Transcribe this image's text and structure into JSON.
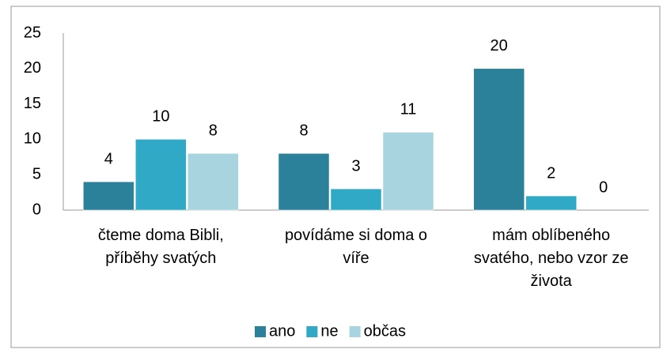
{
  "chart_data": {
    "type": "bar",
    "categories": [
      "čteme doma Bibli, příběhy svatých",
      "povídáme si doma o víře",
      "mám oblíbeného svatého, nebo vzor ze života"
    ],
    "series": [
      {
        "name": "ano",
        "color": "#2b8199",
        "values": [
          4,
          8,
          20
        ]
      },
      {
        "name": "ne",
        "color": "#2fa9c6",
        "values": [
          10,
          3,
          2
        ]
      },
      {
        "name": "občas",
        "color": "#a8d4df",
        "values": [
          8,
          11,
          0
        ]
      }
    ],
    "ylim": [
      0,
      25
    ],
    "yticks": [
      0,
      5,
      10,
      15,
      20,
      25
    ],
    "grid": false,
    "legend": "bottom"
  }
}
